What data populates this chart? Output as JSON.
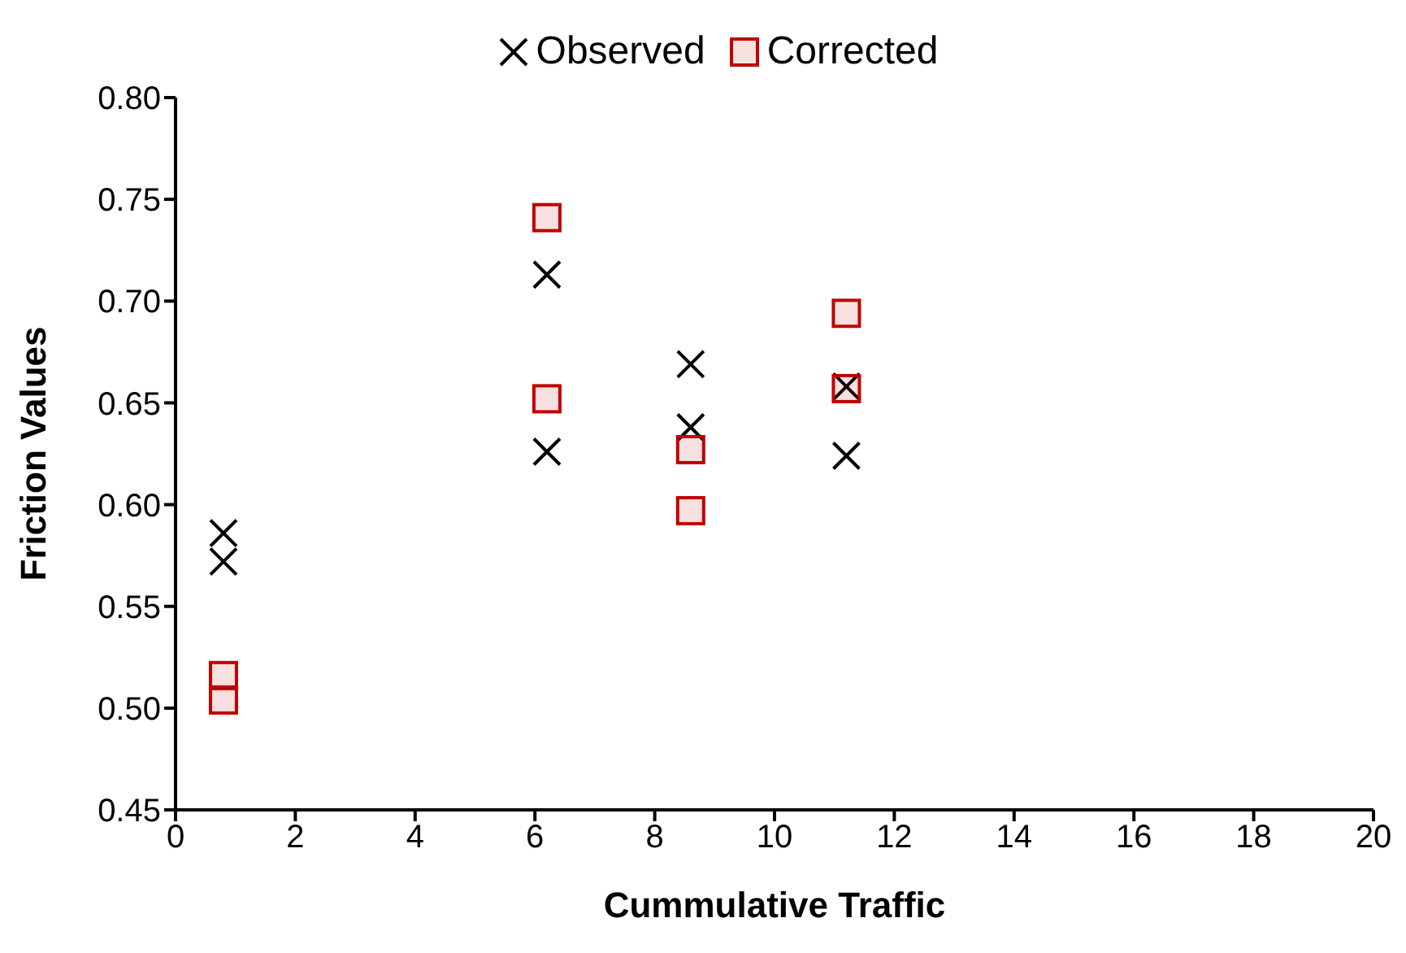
{
  "chart_data": {
    "type": "scatter",
    "xlabel": "Cummulative Traffic",
    "ylabel": "Friction Values",
    "xlim": [
      0,
      20
    ],
    "xticks": [
      0,
      2,
      4,
      6,
      8,
      10,
      12,
      14,
      16,
      18,
      20
    ],
    "ylim": [
      0.45,
      0.8
    ],
    "yticks": [
      0.45,
      {
        "value": 0.5,
        "label": "0.50"
      },
      0.55,
      {
        "value": 0.6,
        "label": "0.60"
      },
      0.65,
      {
        "value": 0.7,
        "label": "0.70"
      },
      0.75,
      {
        "value": 0.8,
        "label": "0.80"
      }
    ],
    "grid": false,
    "legend": "top",
    "series": [
      {
        "name": "Observed",
        "color": "#000000",
        "marker": "cross",
        "x": [
          0.8,
          0.8,
          6.2,
          6.2,
          8.6,
          8.6,
          11.2,
          11.2
        ],
        "values": [
          0.586,
          0.572,
          0.713,
          0.626,
          0.669,
          0.638,
          0.658,
          0.624
        ]
      },
      {
        "name": "Corrected",
        "color": "#c00000",
        "marker": "square",
        "x": [
          0.8,
          0.8,
          6.2,
          6.2,
          8.6,
          8.6,
          11.2,
          11.2
        ],
        "values": [
          0.516,
          0.504,
          0.741,
          0.652,
          0.627,
          0.597,
          0.694,
          0.657
        ]
      }
    ]
  }
}
